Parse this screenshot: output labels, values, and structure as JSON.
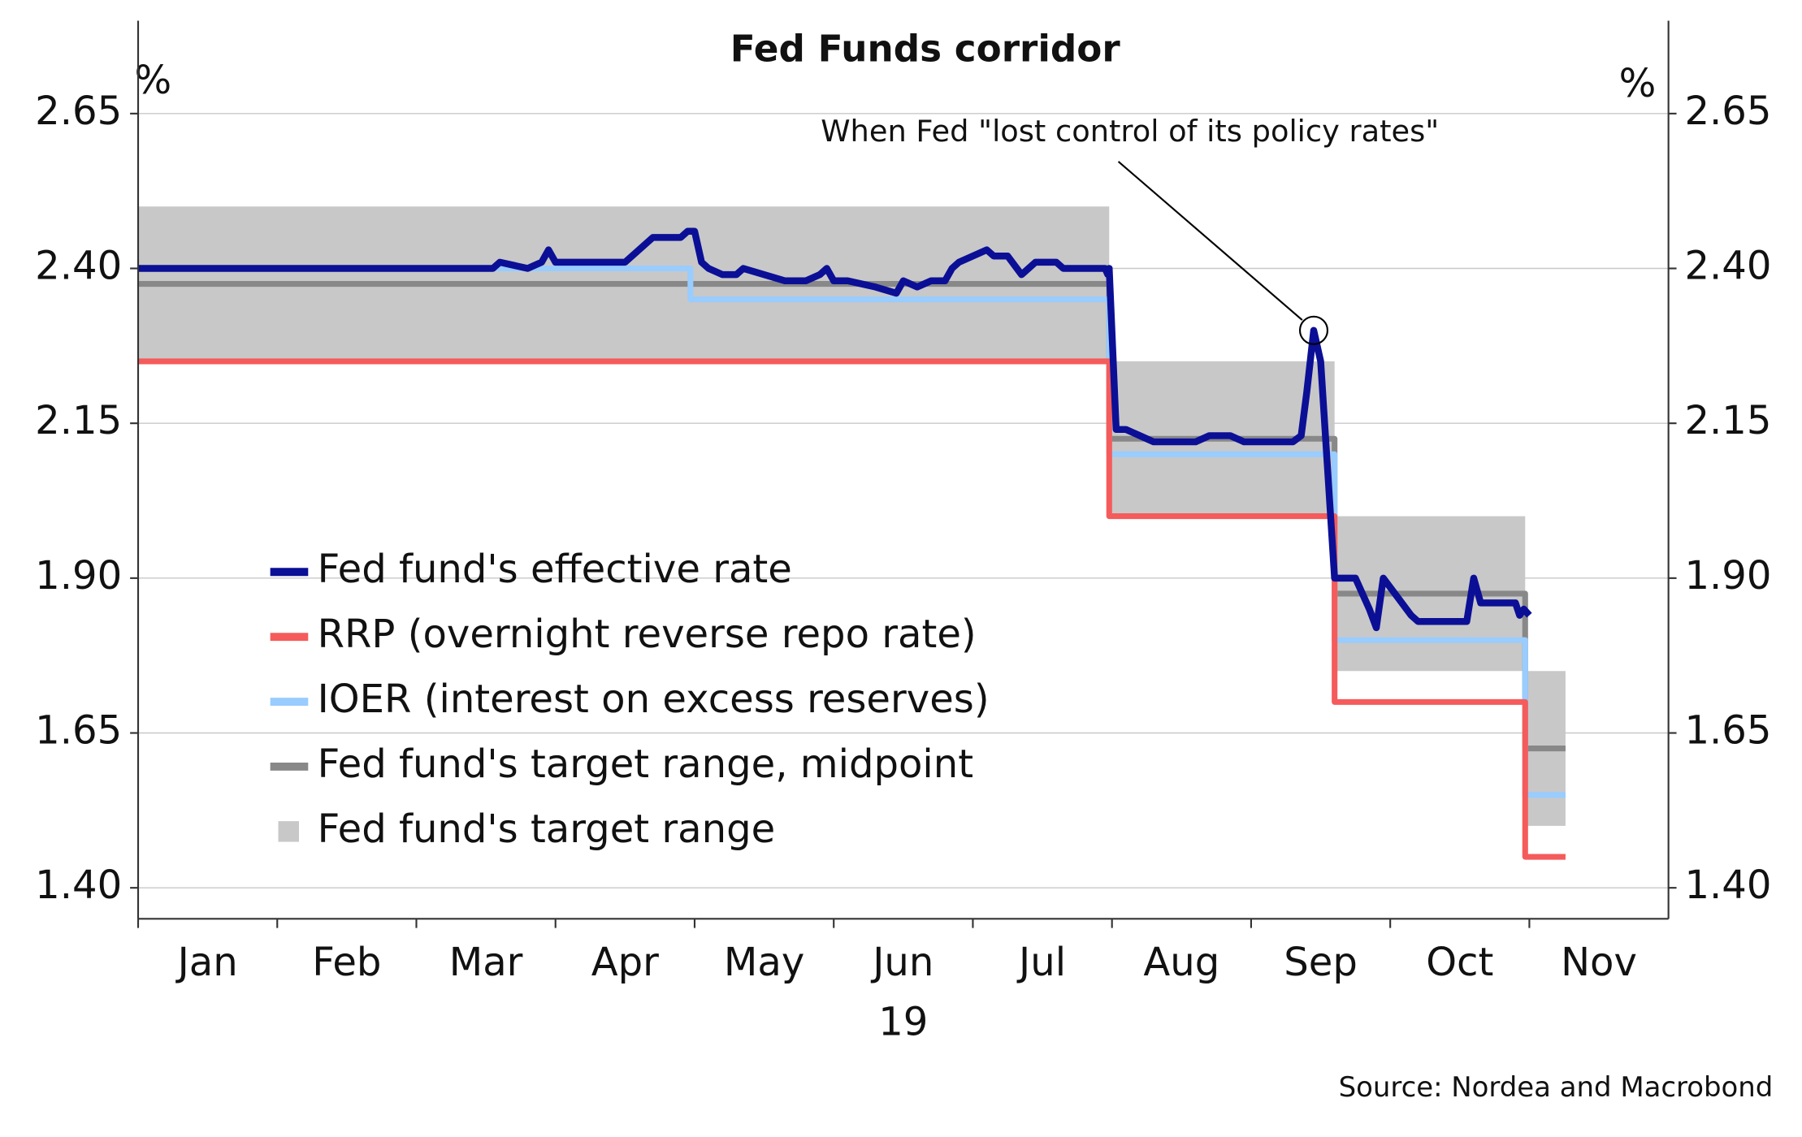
{
  "chart_data": {
    "type": "line",
    "title": "Fed Funds corridor",
    "y_unit": "%",
    "y2_unit": "%",
    "x_sublabel": "19",
    "source": "Source: Nordea and Macrobond",
    "xlim": [
      0,
      11
    ],
    "xticks": [
      {
        "value": 0,
        "label": "Jan"
      },
      {
        "value": 1,
        "label": "Feb"
      },
      {
        "value": 2,
        "label": "Mar"
      },
      {
        "value": 3,
        "label": "Apr"
      },
      {
        "value": 4,
        "label": "May"
      },
      {
        "value": 5,
        "label": "Jun"
      },
      {
        "value": 6,
        "label": "Jul"
      },
      {
        "value": 7,
        "label": "Aug"
      },
      {
        "value": 8,
        "label": "Sep"
      },
      {
        "value": 9,
        "label": "Oct"
      },
      {
        "value": 10,
        "label": "Nov"
      }
    ],
    "ylim": [
      1.35,
      2.8
    ],
    "yticks": [
      {
        "value": 1.4,
        "label": "1.40"
      },
      {
        "value": 1.65,
        "label": "1.65"
      },
      {
        "value": 1.9,
        "label": "1.90"
      },
      {
        "value": 2.15,
        "label": "2.15"
      },
      {
        "value": 2.4,
        "label": "2.40"
      },
      {
        "value": 2.65,
        "label": "2.65"
      }
    ],
    "y2lim": [
      1.35,
      2.8
    ],
    "y2ticks": [
      {
        "value": 1.4,
        "label": "1.40"
      },
      {
        "value": 1.65,
        "label": "1.65"
      },
      {
        "value": 1.9,
        "label": "1.90"
      },
      {
        "value": 2.15,
        "label": "2.15"
      },
      {
        "value": 2.4,
        "label": "2.40"
      },
      {
        "value": 2.65,
        "label": "2.65"
      }
    ],
    "grid": true,
    "legend": "lower left",
    "annotation": {
      "text": "When Fed \"lost control of its policy rates\"",
      "x": 8.45,
      "y": 2.3
    },
    "series": [
      {
        "name": "Fed fund's effective rate",
        "color": "#0b0f96",
        "style": "line",
        "x": [
          0,
          2.55,
          2.6,
          2.8,
          2.9,
          2.95,
          3.0,
          3.5,
          3.65,
          3.7,
          3.9,
          3.95,
          4.0,
          4.05,
          4.1,
          4.2,
          4.3,
          4.35,
          4.5,
          4.65,
          4.8,
          4.9,
          4.95,
          5.0,
          5.1,
          5.3,
          5.45,
          5.5,
          5.6,
          5.7,
          5.8,
          5.85,
          5.9,
          6.0,
          6.1,
          6.15,
          6.25,
          6.35,
          6.45,
          6.6,
          6.65,
          6.95,
          6.97,
          6.98,
          7.03,
          7.1,
          7.2,
          7.3,
          7.6,
          7.7,
          7.85,
          7.95,
          8.3,
          8.36,
          8.4,
          8.45,
          8.5,
          8.6,
          8.75,
          8.85,
          8.9,
          8.95,
          9.05,
          9.15,
          9.2,
          9.55,
          9.6,
          9.65,
          9.9,
          9.93,
          9.96,
          10.0
        ],
        "values": [
          2.4,
          2.4,
          2.41,
          2.4,
          2.41,
          2.43,
          2.41,
          2.41,
          2.44,
          2.45,
          2.45,
          2.46,
          2.46,
          2.41,
          2.4,
          2.39,
          2.39,
          2.4,
          2.39,
          2.38,
          2.38,
          2.39,
          2.4,
          2.38,
          2.38,
          2.37,
          2.36,
          2.38,
          2.37,
          2.38,
          2.38,
          2.4,
          2.41,
          2.42,
          2.43,
          2.42,
          2.42,
          2.39,
          2.41,
          2.41,
          2.4,
          2.4,
          2.39,
          2.4,
          2.14,
          2.14,
          2.13,
          2.12,
          2.12,
          2.13,
          2.13,
          2.12,
          2.12,
          2.13,
          2.2,
          2.3,
          2.25,
          1.9,
          1.9,
          1.85,
          1.82,
          1.9,
          1.87,
          1.84,
          1.83,
          1.83,
          1.9,
          1.86,
          1.86,
          1.84,
          1.85,
          1.84
        ]
      },
      {
        "name": "RRP (overnight reverse repo rate)",
        "color": "#f55b5b",
        "style": "line",
        "x": [
          0,
          6.98,
          6.98,
          8.6,
          8.6,
          9.97,
          9.97,
          10.26
        ],
        "values": [
          2.25,
          2.25,
          2.0,
          2.0,
          1.7,
          1.7,
          1.45,
          1.45
        ]
      },
      {
        "name": "IOER (interest on excess reserves)",
        "color": "#99ccff",
        "style": "line",
        "x": [
          0,
          3.97,
          3.97,
          6.98,
          6.98,
          8.6,
          8.6,
          9.97,
          9.97,
          10.26
        ],
        "values": [
          2.4,
          2.4,
          2.35,
          2.35,
          2.1,
          2.1,
          1.8,
          1.8,
          1.55,
          1.55
        ]
      },
      {
        "name": "Fed fund's target range, midpoint",
        "color": "#888888",
        "style": "line",
        "x": [
          0,
          6.98,
          6.98,
          8.6,
          8.6,
          9.97,
          9.97,
          10.26
        ],
        "values": [
          2.375,
          2.375,
          2.125,
          2.125,
          1.875,
          1.875,
          1.625,
          1.625
        ]
      },
      {
        "name": "Fed fund's target range",
        "color": "#c8c8c8",
        "style": "area",
        "x": [
          0,
          6.98,
          6.98,
          8.6,
          8.6,
          9.97,
          9.97,
          10.26
        ],
        "values": [
          2.5,
          2.5,
          2.25,
          2.25,
          2.0,
          2.0,
          1.75,
          1.75
        ],
        "lows": [
          2.25,
          2.25,
          2.0,
          2.0,
          1.75,
          1.75,
          1.5,
          1.5
        ]
      }
    ]
  }
}
